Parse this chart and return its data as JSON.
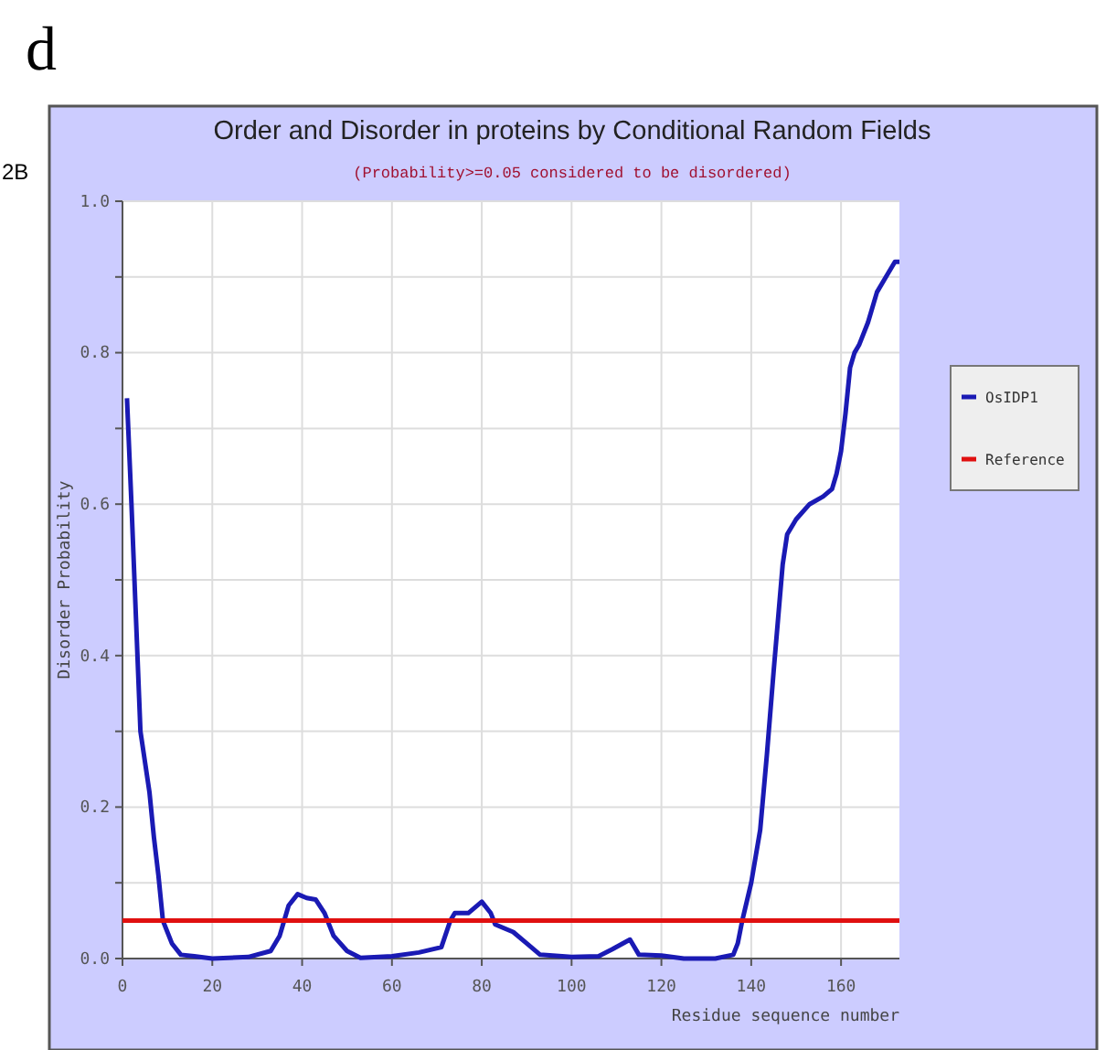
{
  "chart_data": {
    "type": "line",
    "title": "Order and Disorder in proteins by Conditional Random Fields",
    "subtitle": "(Probability>=0.05 considered to be disordered)",
    "xlabel": "Residue sequence number",
    "ylabel": "Disorder Probability",
    "annotations": [
      "d",
      "2B"
    ],
    "xlim": [
      0,
      173
    ],
    "xticks": [
      0,
      20,
      40,
      60,
      80,
      100,
      120,
      140,
      160
    ],
    "ylim": [
      0,
      1
    ],
    "yticks": [
      {
        "value": 0,
        "label": "0.0"
      },
      {
        "value": 0.1,
        "label": null
      },
      0.2,
      {
        "value": 0.3,
        "label": null
      },
      0.4,
      {
        "value": 0.5,
        "label": null
      },
      0.6,
      {
        "value": 0.7,
        "label": null
      },
      0.8,
      {
        "value": 0.9,
        "label": null
      },
      {
        "value": 1,
        "label": "1.0"
      }
    ],
    "grid": true,
    "legend": "right",
    "marker": "none",
    "line_style": "solid",
    "series": [
      {
        "name": "OsIDP1",
        "color": "#1a1ab4",
        "x": [
          1,
          2,
          3,
          4,
          6,
          7,
          8,
          9,
          11,
          13,
          16,
          20,
          28,
          33,
          35,
          37,
          39,
          41,
          43,
          45,
          47,
          50,
          53,
          60,
          66,
          71,
          73,
          74,
          77,
          80,
          82,
          83,
          87,
          90,
          93,
          100,
          106,
          109,
          113,
          115,
          120,
          125,
          132,
          136,
          137,
          138,
          140,
          142,
          143.5,
          145,
          146,
          147,
          148,
          150,
          153,
          156,
          158,
          159,
          160,
          161,
          162,
          163,
          164,
          166,
          168,
          170,
          172,
          173
        ],
        "values": [
          0.74,
          0.6,
          0.45,
          0.3,
          0.22,
          0.16,
          0.11,
          0.05,
          0.02,
          0.005,
          0.003,
          0,
          0.002,
          0.01,
          0.03,
          0.07,
          0.085,
          0.08,
          0.078,
          0.06,
          0.03,
          0.01,
          0.001,
          0.003,
          0.008,
          0.015,
          0.05,
          0.06,
          0.06,
          0.075,
          0.06,
          0.045,
          0.035,
          0.02,
          0.005,
          0.002,
          0.003,
          0.012,
          0.025,
          0.005,
          0.004,
          0,
          0,
          0.005,
          0.02,
          0.05,
          0.1,
          0.17,
          0.27,
          0.38,
          0.45,
          0.52,
          0.56,
          0.58,
          0.6,
          0.61,
          0.62,
          0.64,
          0.67,
          0.72,
          0.78,
          0.8,
          0.81,
          0.84,
          0.88,
          0.9,
          0.92,
          0.92
        ]
      },
      {
        "name": "Reference",
        "color": "#e01010",
        "x": [
          0,
          173
        ],
        "values": [
          0.05,
          0.05
        ]
      }
    ]
  }
}
